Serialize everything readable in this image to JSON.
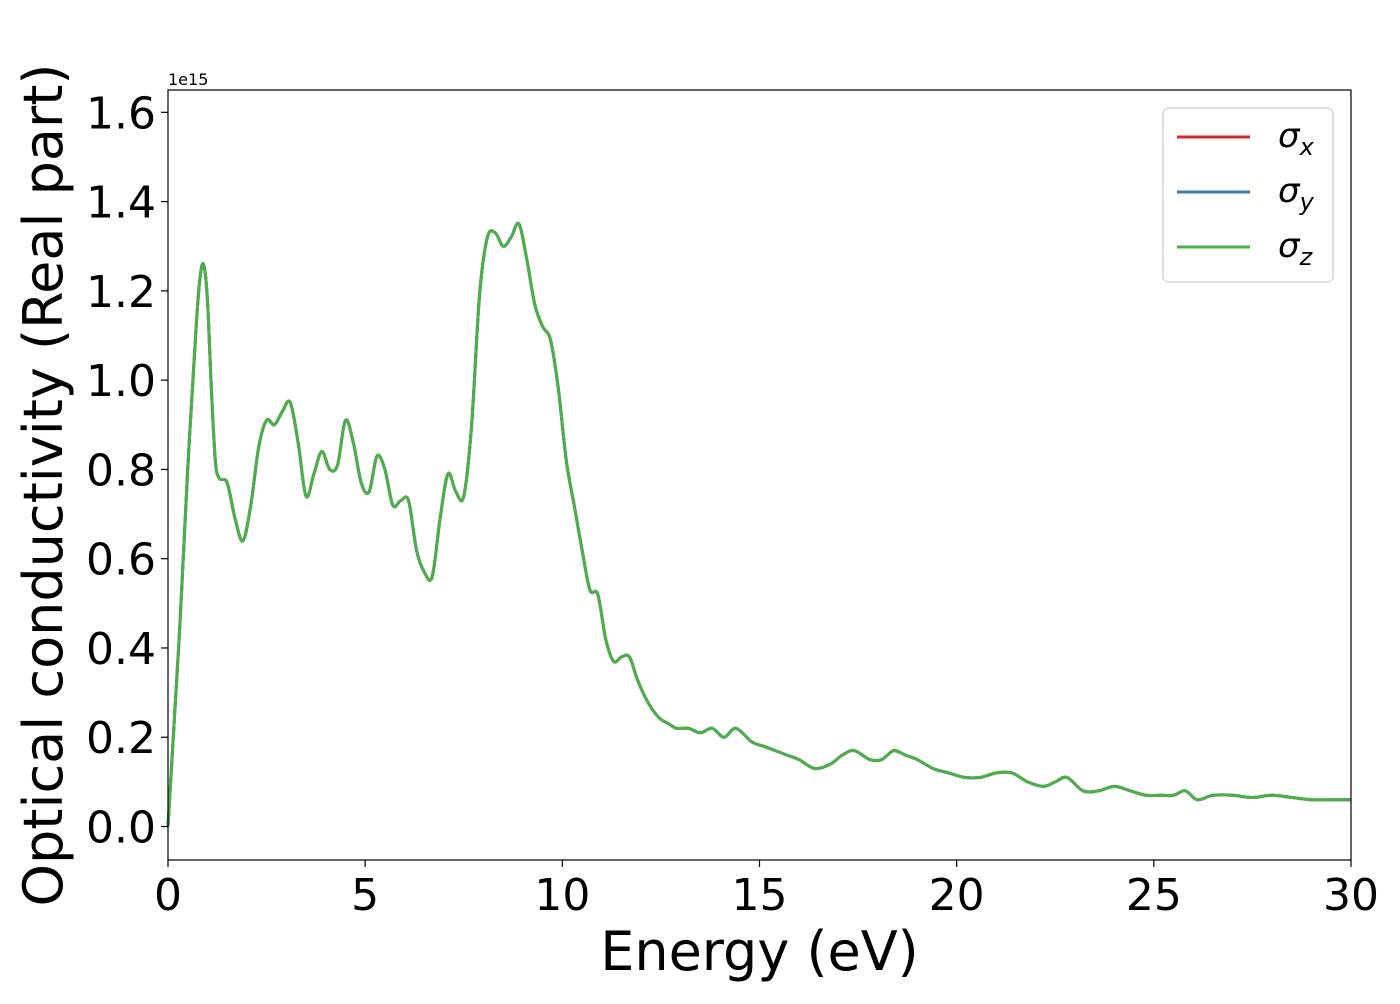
{
  "chart_data": {
    "type": "line",
    "xlabel": "Energy (eV)",
    "ylabel": "Optical conductivity (Real part)",
    "y_offset_text": "1e15",
    "xlim": [
      0,
      30
    ],
    "ylim": [
      -0.075,
      1.65
    ],
    "y_scale_factor": 1000000000000000.0,
    "xticks": [
      0,
      5,
      10,
      15,
      20,
      25,
      30
    ],
    "xtick_labels": [
      "0",
      "5",
      "10",
      "15",
      "20",
      "25",
      "30"
    ],
    "yticks": [
      0.0,
      0.2,
      0.4,
      0.6,
      0.8,
      1.0,
      1.2,
      1.4,
      1.6
    ],
    "ytick_labels": [
      "0.0",
      "0.2",
      "0.4",
      "0.6",
      "0.8",
      "1.0",
      "1.2",
      "1.4",
      "1.6"
    ],
    "grid": false,
    "legend_position": "top-right",
    "series": [
      {
        "name_symbol": "σ",
        "name_sub": "x",
        "color": "#d62728"
      },
      {
        "name_symbol": "σ",
        "name_sub": "y",
        "color": "#3a7bb5"
      },
      {
        "name_symbol": "σ",
        "name_sub": "z",
        "color": "#4daf4a"
      }
    ],
    "x": [
      0,
      0.1,
      0.3,
      0.5,
      0.7,
      0.8,
      0.9,
      1.0,
      1.1,
      1.2,
      1.3,
      1.5,
      1.7,
      1.9,
      2.1,
      2.3,
      2.5,
      2.7,
      2.9,
      3.1,
      3.3,
      3.5,
      3.7,
      3.9,
      4.1,
      4.3,
      4.5,
      4.7,
      4.9,
      5.1,
      5.3,
      5.5,
      5.7,
      5.9,
      6.1,
      6.3,
      6.5,
      6.7,
      6.9,
      7.1,
      7.3,
      7.5,
      7.7,
      7.9,
      8.1,
      8.3,
      8.5,
      8.7,
      8.9,
      9.1,
      9.3,
      9.5,
      9.7,
      9.9,
      10.1,
      10.3,
      10.5,
      10.7,
      10.9,
      11.1,
      11.3,
      11.5,
      11.7,
      11.9,
      12.1,
      12.3,
      12.5,
      12.7,
      12.9,
      13.2,
      13.5,
      13.8,
      14.1,
      14.4,
      14.8,
      15.1,
      15.4,
      15.7,
      16.0,
      16.4,
      16.8,
      17.1,
      17.4,
      17.8,
      18.1,
      18.4,
      18.7,
      19.0,
      19.4,
      19.8,
      20.2,
      20.6,
      21.0,
      21.4,
      21.8,
      22.2,
      22.5,
      22.8,
      23.2,
      23.6,
      24.0,
      24.4,
      24.8,
      25.2,
      25.5,
      25.8,
      26.1,
      26.5,
      27.0,
      27.5,
      28.0,
      28.5,
      29.0,
      29.5,
      30.0
    ],
    "y": [
      0.0,
      0.15,
      0.45,
      0.8,
      1.1,
      1.22,
      1.26,
      1.18,
      0.98,
      0.82,
      0.78,
      0.77,
      0.69,
      0.64,
      0.72,
      0.85,
      0.91,
      0.9,
      0.93,
      0.95,
      0.86,
      0.74,
      0.79,
      0.84,
      0.8,
      0.81,
      0.91,
      0.86,
      0.77,
      0.75,
      0.83,
      0.8,
      0.72,
      0.73,
      0.73,
      0.62,
      0.57,
      0.56,
      0.69,
      0.79,
      0.75,
      0.74,
      0.9,
      1.19,
      1.32,
      1.33,
      1.3,
      1.32,
      1.35,
      1.27,
      1.17,
      1.12,
      1.09,
      0.98,
      0.82,
      0.72,
      0.62,
      0.53,
      0.52,
      0.42,
      0.37,
      0.38,
      0.38,
      0.33,
      0.29,
      0.26,
      0.24,
      0.23,
      0.22,
      0.22,
      0.21,
      0.22,
      0.2,
      0.22,
      0.19,
      0.18,
      0.17,
      0.16,
      0.15,
      0.13,
      0.14,
      0.16,
      0.17,
      0.15,
      0.15,
      0.17,
      0.16,
      0.15,
      0.13,
      0.12,
      0.11,
      0.11,
      0.12,
      0.12,
      0.1,
      0.09,
      0.1,
      0.11,
      0.08,
      0.08,
      0.09,
      0.08,
      0.07,
      0.07,
      0.07,
      0.08,
      0.06,
      0.07,
      0.07,
      0.065,
      0.07,
      0.065,
      0.06,
      0.06,
      0.06
    ]
  }
}
